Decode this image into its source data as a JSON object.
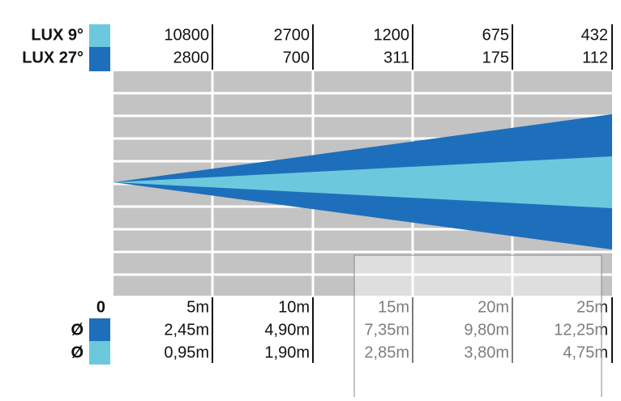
{
  "lux_table": {
    "rows": [
      {
        "label": "LUX 9°",
        "values": [
          10800,
          2700,
          1200,
          675,
          432
        ]
      },
      {
        "label": "LUX 27°",
        "values": [
          2800,
          700,
          311,
          175,
          112
        ]
      }
    ]
  },
  "distance_table": {
    "origin": "0",
    "distances": [
      "5m",
      "10m",
      "15m",
      "20m",
      "25m"
    ],
    "rows": [
      {
        "label": "Ø",
        "values": [
          "2,45m",
          "4,90m",
          "7,35m",
          "9,80m",
          "12,25m"
        ]
      },
      {
        "label": "Ø",
        "values": [
          "0,95m",
          "1,90m",
          "2,85m",
          "3,80m",
          "4,75m"
        ]
      }
    ]
  }
}
